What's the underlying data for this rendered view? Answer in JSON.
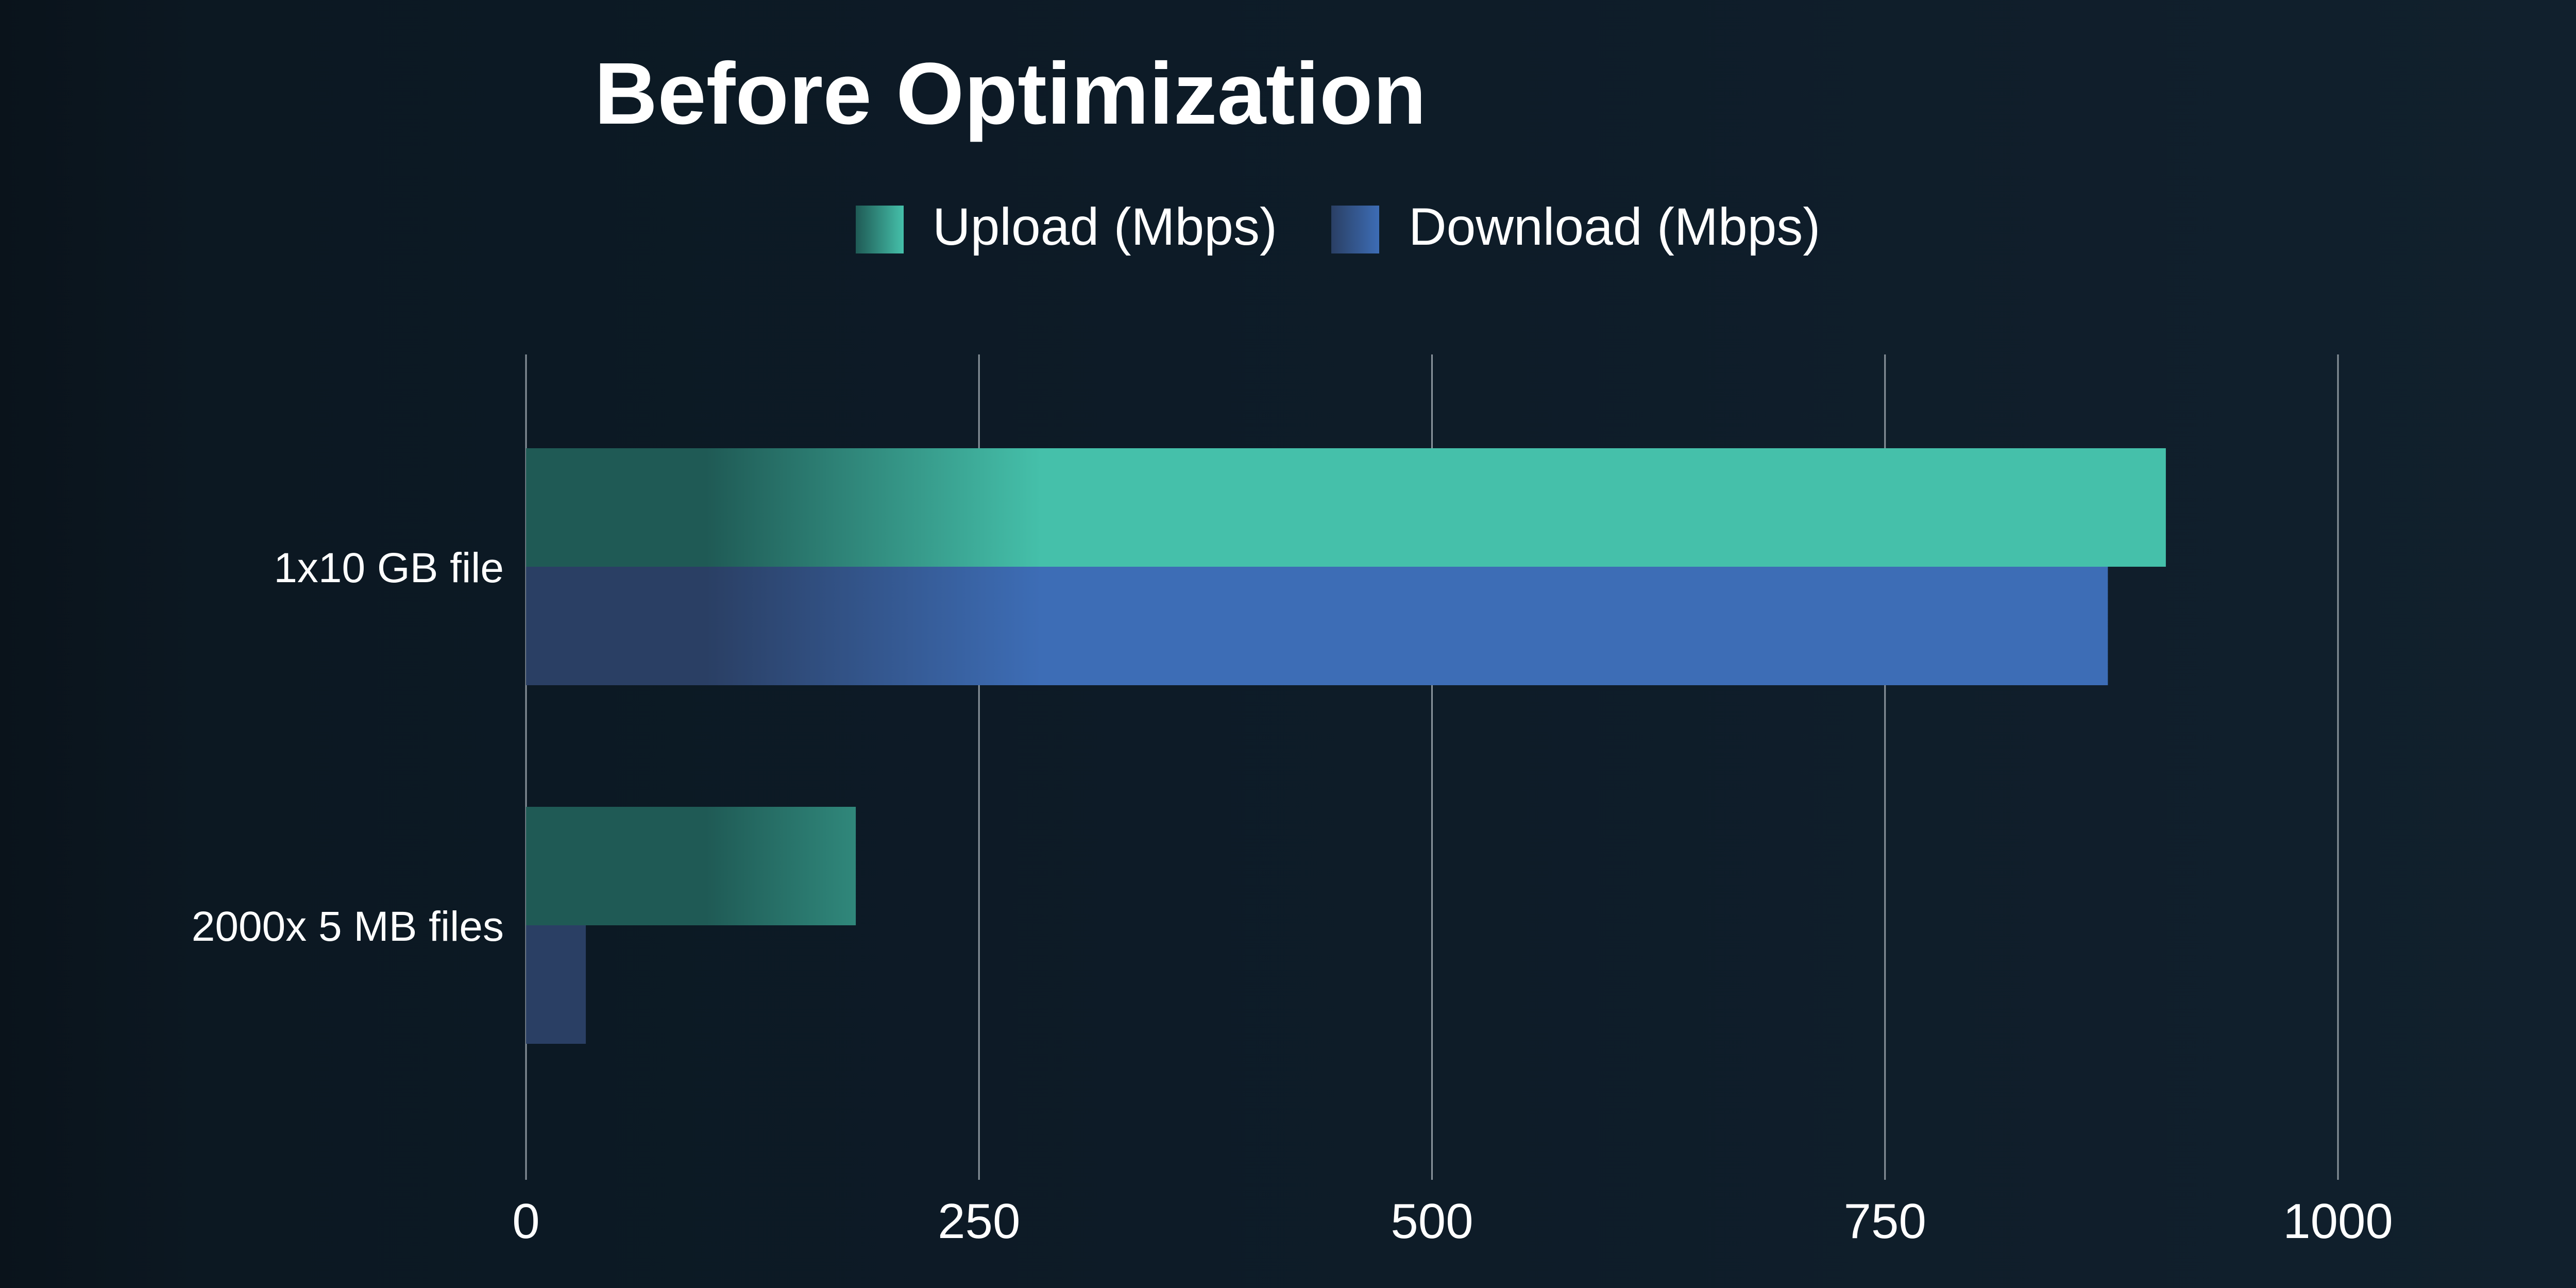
{
  "chart_data": {
    "type": "bar",
    "orientation": "horizontal",
    "title": "Before Optimization",
    "categories": [
      "1x10 GB file",
      "2000x 5 MB files"
    ],
    "series": [
      {
        "name": "Upload (Mbps)",
        "values": [
          905,
          182
        ]
      },
      {
        "name": "Download (Mbps)",
        "values": [
          873,
          33
        ]
      }
    ],
    "xlim": [
      0,
      1000
    ],
    "xticks": [
      "0",
      "250",
      "500",
      "750",
      "1000"
    ],
    "xtick_values": [
      0,
      250,
      500,
      750,
      1000
    ],
    "grid": true,
    "legend_position": "top-center",
    "colors": {
      "upload": "#45c0aa",
      "upload_dark": "#1f5a55",
      "download": "#3d6db6",
      "download_dark": "#2a3f64",
      "gridline": "#8a949c",
      "text": "#ffffff"
    }
  }
}
